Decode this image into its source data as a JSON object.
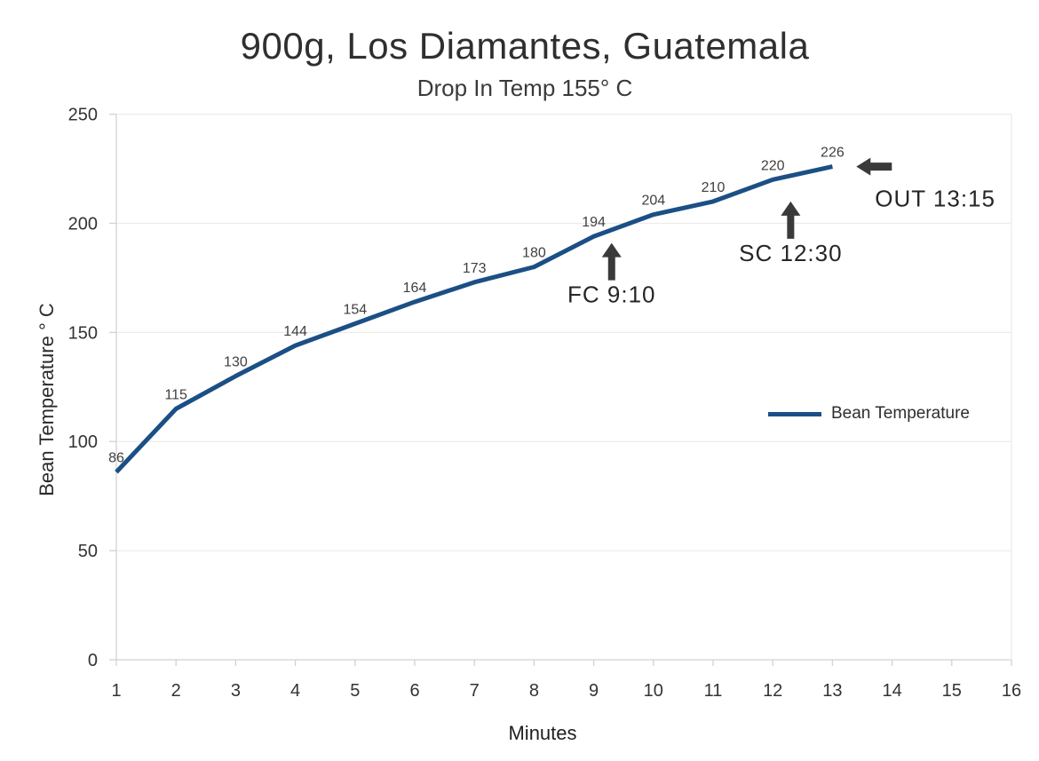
{
  "chart_data": {
    "type": "line",
    "title": "900g, Los Diamantes, Guatemala",
    "subtitle": "Drop In Temp 155° C",
    "drop_in_temp_c": 155,
    "xlabel": "Minutes",
    "ylabel": "Bean Temperature ° C",
    "x": [
      1,
      2,
      3,
      4,
      5,
      6,
      7,
      8,
      9,
      10,
      11,
      12,
      13
    ],
    "series": [
      {
        "name": "Bean Temperature",
        "color": "#1b4f85",
        "values": [
          86,
          115,
          130,
          144,
          154,
          164,
          173,
          180,
          194,
          204,
          210,
          220,
          226
        ]
      }
    ],
    "data_labels_visible": true,
    "xticks": [
      1,
      2,
      3,
      4,
      5,
      6,
      7,
      8,
      9,
      10,
      11,
      12,
      13,
      14,
      15,
      16
    ],
    "yticks": [
      0,
      50,
      100,
      150,
      200,
      250
    ],
    "xlim": [
      1,
      16
    ],
    "ylim": [
      0,
      250
    ],
    "grid": "horizontal",
    "legend_position": "right-middle",
    "annotations": [
      {
        "label": "FC 9:10",
        "arrow": "up",
        "minute": 9.3,
        "temp": 191
      },
      {
        "label": "SC 12:30",
        "arrow": "up",
        "minute": 12.3,
        "temp": 210
      },
      {
        "label": "OUT 13:15",
        "arrow": "left",
        "minute": 13.4,
        "temp": 226
      }
    ]
  },
  "colors": {
    "line": "#1b4f85",
    "grid": "#ececec",
    "axis": "#d2d2d2",
    "tick_text": "#333333",
    "data_label_text": "#3f3f3f",
    "annotation_arrow": "#3a3a3a",
    "annotation_text": "#262626"
  }
}
